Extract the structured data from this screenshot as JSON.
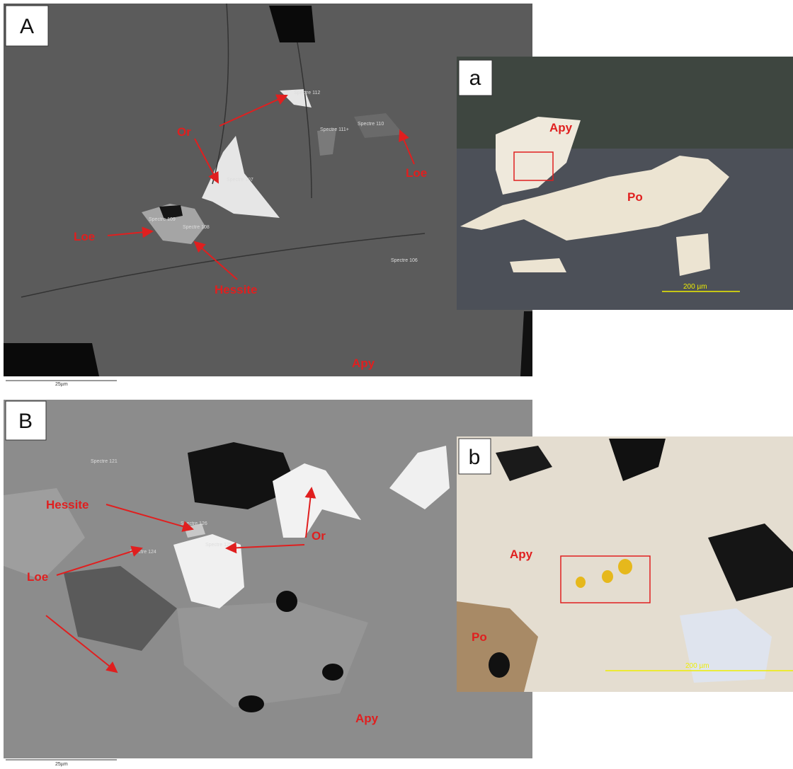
{
  "panels": [
    {
      "label": "A",
      "scale_bar": "25µm",
      "spectra": [
        "Spectre 112",
        "Spectre 110",
        "Spectre 111+",
        "Spectre 107",
        "Spectre 109",
        "Spectre 108",
        "Spectre 106"
      ],
      "labels": [
        "Or",
        "Loe",
        "Loe",
        "Hessite",
        "Apy"
      ]
    },
    {
      "label": "a",
      "scale_bar": "200 µm",
      "labels": [
        "Apy",
        "Po"
      ]
    },
    {
      "label": "B",
      "scale_bar": "25µm",
      "spectra": [
        "Spectre 121",
        "Spectre 126",
        "Spectre 124",
        "Spectre 125"
      ],
      "labels": [
        "Hessite",
        "Or",
        "Loe",
        "Apy"
      ]
    },
    {
      "label": "b",
      "scale_bar": "200 µm",
      "labels": [
        "Apy",
        "Po"
      ]
    }
  ]
}
